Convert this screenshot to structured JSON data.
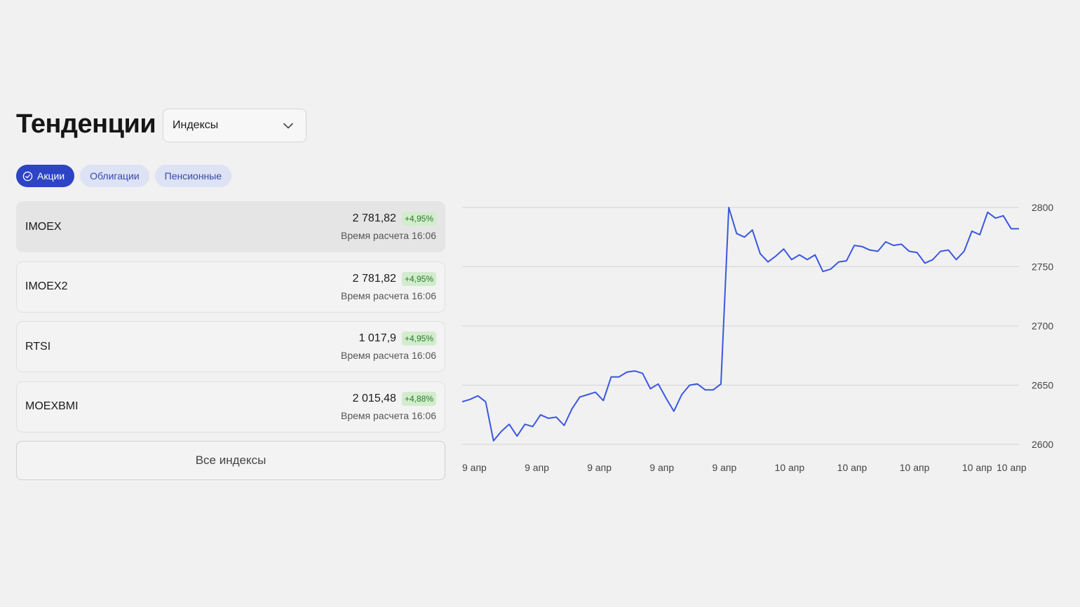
{
  "header": {
    "title": "Тенденции",
    "select_value": "Индексы",
    "select_icon": "chevron-down-icon"
  },
  "chips": [
    {
      "label": "Акции",
      "active": true,
      "icon": "check-circle-icon"
    },
    {
      "label": "Облигации",
      "active": false
    },
    {
      "label": "Пенсионные",
      "active": false
    }
  ],
  "indices": [
    {
      "name": "IMOEX",
      "price": "2 781,82",
      "change": "+4,95%",
      "time": "Время расчета 16:06",
      "selected": true
    },
    {
      "name": "IMOEX2",
      "price": "2 781,82",
      "change": "+4,95%",
      "time": "Время расчета 16:06",
      "selected": false
    },
    {
      "name": "RTSI",
      "price": "1 017,9",
      "change": "+4,95%",
      "time": "Время расчета 16:06",
      "selected": false
    },
    {
      "name": "MOEXBMI",
      "price": "2 015,48",
      "change": "+4,88%",
      "time": "Время расчета 16:06",
      "selected": false
    }
  ],
  "all_button": "Все индексы",
  "colors": {
    "accent": "#2d44c4",
    "line": "#3a57e0",
    "positive_bg": "#d2eccd",
    "positive_text": "#2a7a2a"
  },
  "chart_data": {
    "type": "line",
    "ylim": [
      2600,
      2800
    ],
    "yticks": [
      2800,
      2750,
      2700,
      2650,
      2600
    ],
    "xtick_labels": [
      "9 апр",
      "9 апр",
      "9 апр",
      "9 апр",
      "9 апр",
      "10 апр",
      "10 апр",
      "10 апр",
      "10 апр",
      "10 апр"
    ],
    "grid": true,
    "series": [
      {
        "values": [
          2636,
          2638,
          2641,
          2636,
          2603,
          2611,
          2617,
          2607,
          2617,
          2615,
          2625,
          2622,
          2623,
          2616,
          2630,
          2640,
          2642,
          2644,
          2637,
          2657,
          2657,
          2661,
          2662,
          2660,
          2647,
          2651,
          2639,
          2628,
          2642,
          2650,
          2651,
          2646,
          2646,
          2651,
          2800,
          2778,
          2775,
          2781,
          2761,
          2754,
          2759,
          2765,
          2756,
          2760,
          2756,
          2760,
          2746,
          2748,
          2754,
          2755,
          2768,
          2767,
          2764,
          2763,
          2771,
          2768,
          2769,
          2763,
          2762,
          2753,
          2756,
          2763,
          2764,
          2756,
          2763,
          2780,
          2777,
          2796,
          2791,
          2793,
          2782,
          2782
        ]
      }
    ]
  }
}
